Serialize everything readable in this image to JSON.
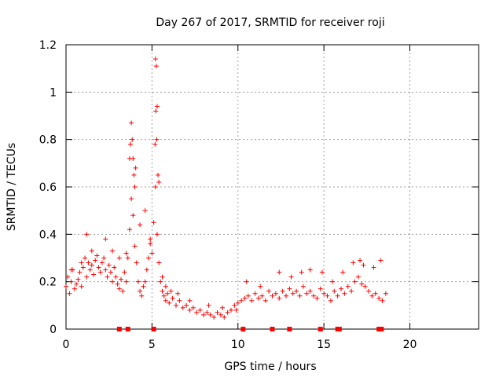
{
  "chart_data": {
    "type": "scatter",
    "title": "Day 267 of 2017, SRMTID for receiver roji",
    "xlabel": "GPS time / hours",
    "ylabel": "SRMTID / TECUs",
    "xlim": [
      0,
      24
    ],
    "ylim": [
      0,
      1.2
    ],
    "xticks": [
      0,
      5,
      10,
      15,
      20
    ],
    "yticks": [
      0,
      0.2,
      0.4,
      0.6,
      0.8,
      1.0,
      1.2
    ],
    "xtick_labels": [
      "0",
      "5",
      "10",
      "15",
      "20"
    ],
    "ytick_labels": [
      "0",
      "0.2",
      "0.4",
      "0.6",
      "0.8",
      "1",
      "1.2"
    ],
    "grid": true,
    "marker": "+",
    "color": "#ff0000",
    "series": [
      {
        "name": "SRMTID",
        "x": [
          0.0,
          0.1,
          0.2,
          0.3,
          0.4,
          0.5,
          0.6,
          0.7,
          0.8,
          0.9,
          1.0,
          1.1,
          1.2,
          1.3,
          1.4,
          1.5,
          1.6,
          1.7,
          1.8,
          1.9,
          2.0,
          2.1,
          2.2,
          2.3,
          2.4,
          2.5,
          2.6,
          2.7,
          2.8,
          2.9,
          3.0,
          3.1,
          3.2,
          3.3,
          3.4,
          3.5,
          3.6,
          3.7,
          3.8,
          3.9,
          4.0,
          4.1,
          4.2,
          4.3,
          4.4,
          4.5,
          4.6,
          4.7,
          4.8,
          4.9,
          5.0,
          5.1,
          5.2,
          5.3,
          5.4,
          5.5,
          5.6,
          5.7,
          5.8,
          5.9,
          6.0,
          6.2,
          6.4,
          6.6,
          6.8,
          7.0,
          7.2,
          7.4,
          7.6,
          7.8,
          8.0,
          8.2,
          8.4,
          8.6,
          8.8,
          9.0,
          9.2,
          9.4,
          9.6,
          9.8,
          10.0,
          10.2,
          10.4,
          10.6,
          10.8,
          11.0,
          11.2,
          11.4,
          11.6,
          11.8,
          12.0,
          12.2,
          12.4,
          12.6,
          12.8,
          13.0,
          13.2,
          13.4,
          13.6,
          13.8,
          14.0,
          14.2,
          14.4,
          14.6,
          14.8,
          15.0,
          15.2,
          15.4,
          15.6,
          15.8,
          16.0,
          16.2,
          16.4,
          16.6,
          16.8,
          17.0,
          17.2,
          17.4,
          17.6,
          17.8,
          18.0,
          18.2,
          18.4,
          18.6,
          3.8,
          3.85,
          3.9,
          3.95,
          4.0,
          4.05,
          3.75,
          3.7,
          5.2,
          5.25,
          5.3,
          5.22,
          5.28,
          5.35,
          5.4,
          5.18,
          0.3,
          0.9,
          1.2,
          1.5,
          2.3,
          2.7,
          3.1,
          3.5,
          4.3,
          4.6,
          4.9,
          5.6,
          5.8,
          6.1,
          6.5,
          7.2,
          8.3,
          9.1,
          9.9,
          10.5,
          11.3,
          12.4,
          13.1,
          13.7,
          14.2,
          14.9,
          15.5,
          16.1,
          16.7,
          17.1,
          17.3,
          17.9,
          18.3
        ],
        "y": [
          0.18,
          0.22,
          0.15,
          0.2,
          0.25,
          0.17,
          0.19,
          0.21,
          0.24,
          0.18,
          0.26,
          0.3,
          0.22,
          0.28,
          0.25,
          0.27,
          0.23,
          0.29,
          0.31,
          0.26,
          0.24,
          0.28,
          0.3,
          0.25,
          0.22,
          0.27,
          0.24,
          0.2,
          0.26,
          0.22,
          0.19,
          0.17,
          0.21,
          0.16,
          0.24,
          0.2,
          0.3,
          0.42,
          0.55,
          0.48,
          0.35,
          0.28,
          0.2,
          0.16,
          0.14,
          0.18,
          0.2,
          0.25,
          0.3,
          0.38,
          0.32,
          0.45,
          0.6,
          0.4,
          0.28,
          0.2,
          0.16,
          0.14,
          0.12,
          0.15,
          0.11,
          0.13,
          0.1,
          0.12,
          0.09,
          0.1,
          0.08,
          0.09,
          0.07,
          0.08,
          0.06,
          0.07,
          0.06,
          0.05,
          0.07,
          0.06,
          0.05,
          0.07,
          0.08,
          0.1,
          0.11,
          0.12,
          0.13,
          0.14,
          0.12,
          0.15,
          0.13,
          0.14,
          0.12,
          0.16,
          0.14,
          0.15,
          0.13,
          0.16,
          0.14,
          0.17,
          0.15,
          0.16,
          0.14,
          0.18,
          0.15,
          0.16,
          0.14,
          0.13,
          0.17,
          0.15,
          0.14,
          0.12,
          0.16,
          0.14,
          0.17,
          0.15,
          0.18,
          0.16,
          0.2,
          0.22,
          0.19,
          0.18,
          0.16,
          0.14,
          0.15,
          0.13,
          0.12,
          0.15,
          0.87,
          0.8,
          0.72,
          0.65,
          0.6,
          0.68,
          0.78,
          0.72,
          1.14,
          1.11,
          0.94,
          0.92,
          0.8,
          0.65,
          0.62,
          0.78,
          0.25,
          0.28,
          0.4,
          0.33,
          0.38,
          0.33,
          0.3,
          0.32,
          0.44,
          0.5,
          0.36,
          0.22,
          0.18,
          0.16,
          0.15,
          0.12,
          0.1,
          0.09,
          0.08,
          0.2,
          0.18,
          0.24,
          0.22,
          0.24,
          0.25,
          0.24,
          0.2,
          0.24,
          0.28,
          0.29,
          0.27,
          0.26,
          0.29
        ]
      }
    ],
    "gap_markers_x": [
      3.1,
      3.6,
      5.1,
      10.3,
      12.0,
      13.0,
      14.8,
      15.8,
      15.9,
      18.2,
      18.35
    ]
  }
}
